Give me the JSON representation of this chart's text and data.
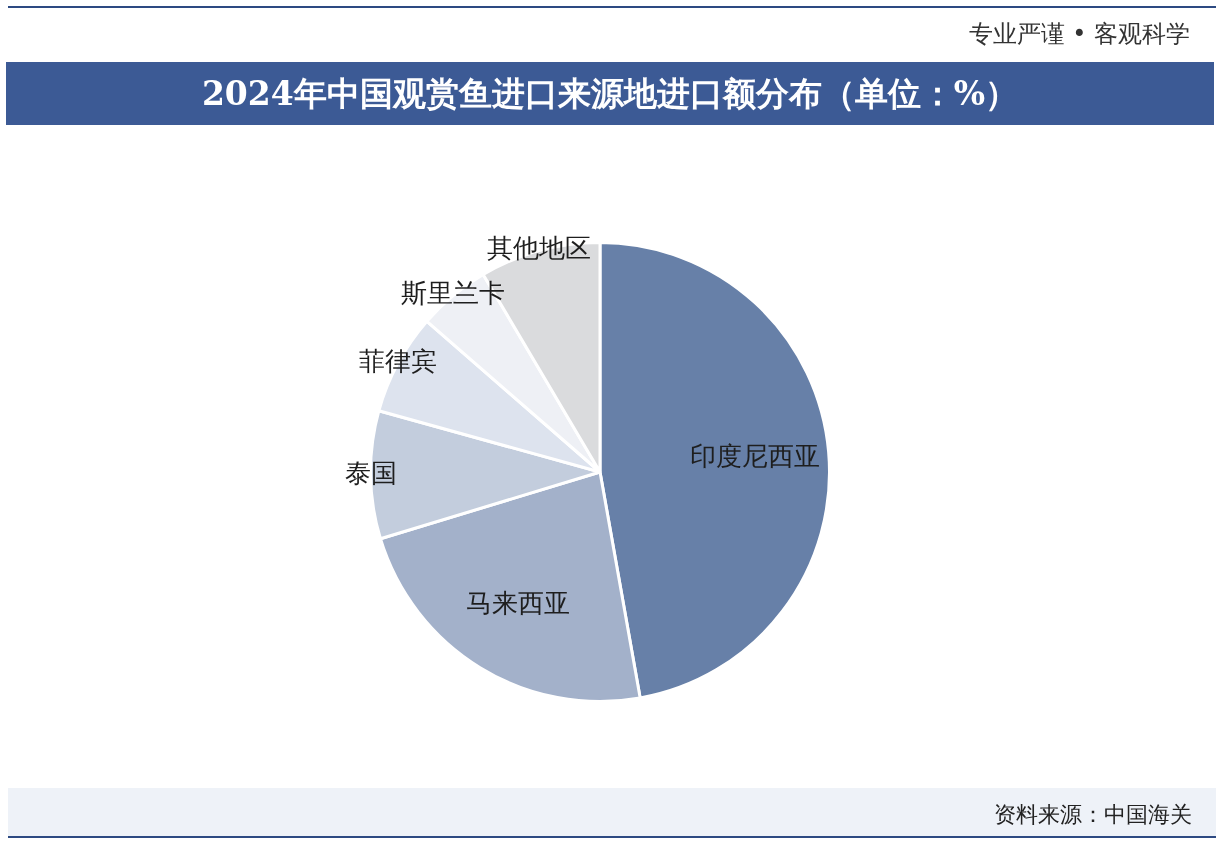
{
  "chart_data": {
    "type": "pie",
    "title": "2024年中国观赏鱼进口来源地进口额分布（单位：%）",
    "categories": [
      "印度尼西亚",
      "马来西亚",
      "泰国",
      "菲律宾",
      "斯里兰卡",
      "其他地区"
    ],
    "values": [
      47.2,
      23.1,
      9.0,
      7.1,
      5.1,
      8.5
    ],
    "colors": [
      "#6780a8",
      "#a3b1ca",
      "#c3cddd",
      "#dde3ee",
      "#eef0f5",
      "#dadbdd"
    ],
    "legend": false,
    "annotations": [
      "专业严谨 • 客观科学",
      "资料来源：中国海关"
    ]
  }
}
